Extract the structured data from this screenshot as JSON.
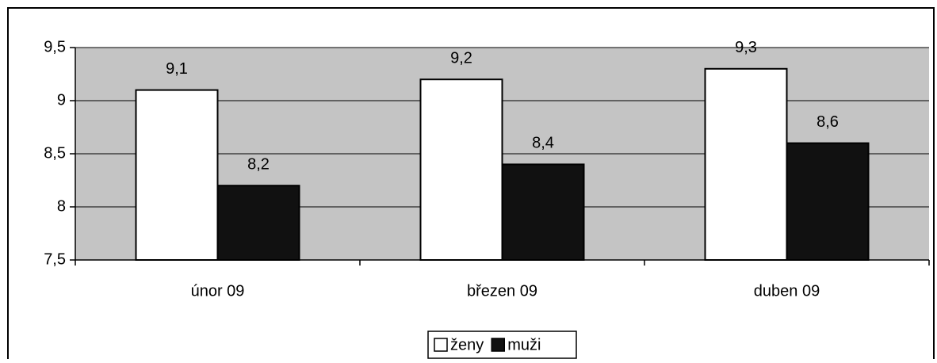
{
  "chart_data": {
    "type": "bar",
    "categories": [
      "únor 09",
      "březen 09",
      "duben 09"
    ],
    "series": [
      {
        "name": "ženy",
        "color": "#ffffff",
        "values": [
          9.1,
          9.2,
          9.3
        ],
        "value_labels": [
          "9,1",
          "9,2",
          "9,3"
        ]
      },
      {
        "name": "muži",
        "color": "#111111",
        "values": [
          8.2,
          8.4,
          8.6
        ],
        "value_labels": [
          "8,2",
          "8,4",
          "8,6"
        ]
      }
    ],
    "ylim": [
      7.5,
      9.5
    ],
    "yticks": [
      {
        "value": 7.5,
        "label": "7,5"
      },
      8,
      {
        "value": 8.5,
        "label": "8,5"
      },
      9,
      {
        "value": 9.5,
        "label": "9,5"
      }
    ],
    "grid": true,
    "plot_background": "#c4c4c4",
    "legend": "bottom"
  }
}
